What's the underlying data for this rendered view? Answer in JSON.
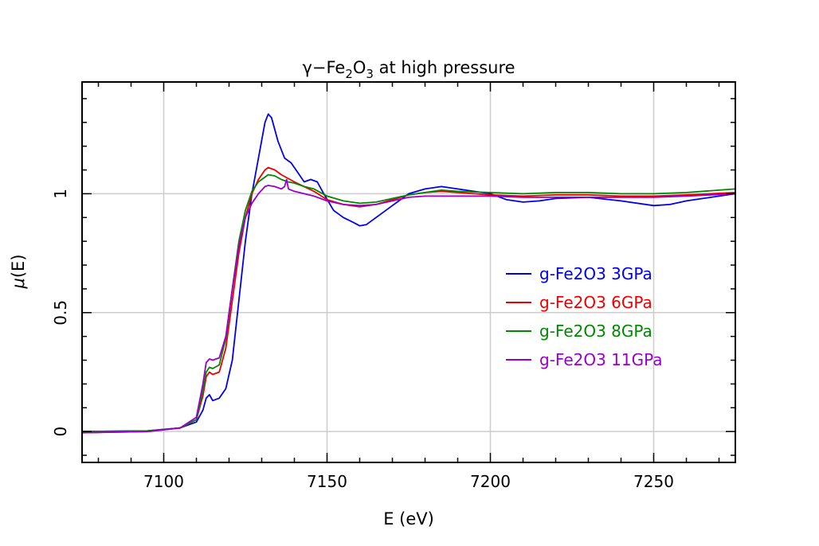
{
  "chart_data": {
    "type": "line",
    "title_prefix": "γ−Fe",
    "title_sub1": "2",
    "title_mid": "O",
    "title_sub2": "3",
    "title_suffix": " at high pressure",
    "xlabel": "E (eV)",
    "ylabel_mu": "μ",
    "ylabel_rest": "(E)",
    "xlim": [
      7075,
      7275
    ],
    "ylim": [
      -0.13,
      1.47
    ],
    "x_ticks": [
      7100,
      7150,
      7200,
      7250
    ],
    "x_tick_labels": [
      "7100",
      "7150",
      "7200",
      "7250"
    ],
    "y_ticks": [
      0,
      0.5,
      1
    ],
    "y_tick_labels": [
      "0",
      "0.5",
      "1"
    ],
    "grid": true,
    "legend_position": "right-center",
    "series": [
      {
        "name": "g-Fe2O3 3GPa",
        "color": "#0000ee",
        "points": [
          [
            7075,
            0
          ],
          [
            7095,
            0.003
          ],
          [
            7105,
            0.015
          ],
          [
            7110,
            0.04
          ],
          [
            7112,
            0.09
          ],
          [
            7113,
            0.14
          ],
          [
            7114,
            0.155
          ],
          [
            7115,
            0.13
          ],
          [
            7117,
            0.14
          ],
          [
            7119,
            0.18
          ],
          [
            7121,
            0.3
          ],
          [
            7123,
            0.55
          ],
          [
            7125,
            0.8
          ],
          [
            7127,
            1.0
          ],
          [
            7129,
            1.15
          ],
          [
            7131,
            1.3
          ],
          [
            7132,
            1.335
          ],
          [
            7133,
            1.32
          ],
          [
            7135,
            1.22
          ],
          [
            7137,
            1.15
          ],
          [
            7139,
            1.13
          ],
          [
            7141,
            1.09
          ],
          [
            7143,
            1.05
          ],
          [
            7145,
            1.06
          ],
          [
            7147,
            1.05
          ],
          [
            7149,
            1.0
          ],
          [
            7152,
            0.93
          ],
          [
            7155,
            0.9
          ],
          [
            7158,
            0.88
          ],
          [
            7160,
            0.865
          ],
          [
            7162,
            0.87
          ],
          [
            7165,
            0.9
          ],
          [
            7170,
            0.95
          ],
          [
            7175,
            1.0
          ],
          [
            7180,
            1.02
          ],
          [
            7185,
            1.03
          ],
          [
            7190,
            1.02
          ],
          [
            7195,
            1.01
          ],
          [
            7200,
            1.0
          ],
          [
            7205,
            0.975
          ],
          [
            7210,
            0.965
          ],
          [
            7215,
            0.97
          ],
          [
            7220,
            0.98
          ],
          [
            7230,
            0.985
          ],
          [
            7240,
            0.97
          ],
          [
            7250,
            0.95
          ],
          [
            7255,
            0.955
          ],
          [
            7260,
            0.97
          ],
          [
            7265,
            0.98
          ],
          [
            7270,
            0.99
          ],
          [
            7275,
            1.0
          ]
        ]
      },
      {
        "name": "g-Fe2O3 6GPa",
        "color": "#ee0000",
        "points": [
          [
            7075,
            -0.005
          ],
          [
            7095,
            0.0
          ],
          [
            7105,
            0.015
          ],
          [
            7110,
            0.05
          ],
          [
            7112,
            0.15
          ],
          [
            7113,
            0.23
          ],
          [
            7114,
            0.25
          ],
          [
            7115,
            0.24
          ],
          [
            7117,
            0.25
          ],
          [
            7119,
            0.35
          ],
          [
            7121,
            0.55
          ],
          [
            7123,
            0.75
          ],
          [
            7125,
            0.9
          ],
          [
            7127,
            1.0
          ],
          [
            7129,
            1.06
          ],
          [
            7131,
            1.1
          ],
          [
            7132,
            1.11
          ],
          [
            7134,
            1.1
          ],
          [
            7136,
            1.08
          ],
          [
            7138,
            1.065
          ],
          [
            7140,
            1.05
          ],
          [
            7143,
            1.03
          ],
          [
            7146,
            1.01
          ],
          [
            7150,
            0.975
          ],
          [
            7155,
            0.955
          ],
          [
            7160,
            0.945
          ],
          [
            7165,
            0.955
          ],
          [
            7170,
            0.975
          ],
          [
            7175,
            0.995
          ],
          [
            7180,
            1.005
          ],
          [
            7185,
            1.01
          ],
          [
            7190,
            1.005
          ],
          [
            7200,
            0.995
          ],
          [
            7210,
            0.99
          ],
          [
            7220,
            0.995
          ],
          [
            7230,
            0.995
          ],
          [
            7240,
            0.99
          ],
          [
            7250,
            0.99
          ],
          [
            7260,
            0.995
          ],
          [
            7275,
            1.005
          ]
        ]
      },
      {
        "name": "g-Fe2O3 8GPa",
        "color": "#008800",
        "points": [
          [
            7075,
            0
          ],
          [
            7095,
            0.003
          ],
          [
            7105,
            0.015
          ],
          [
            7110,
            0.05
          ],
          [
            7112,
            0.17
          ],
          [
            7113,
            0.25
          ],
          [
            7114,
            0.27
          ],
          [
            7115,
            0.265
          ],
          [
            7117,
            0.28
          ],
          [
            7119,
            0.39
          ],
          [
            7121,
            0.6
          ],
          [
            7123,
            0.8
          ],
          [
            7125,
            0.93
          ],
          [
            7127,
            1.01
          ],
          [
            7129,
            1.05
          ],
          [
            7131,
            1.07
          ],
          [
            7132,
            1.08
          ],
          [
            7134,
            1.075
          ],
          [
            7136,
            1.06
          ],
          [
            7138,
            1.05
          ],
          [
            7140,
            1.045
          ],
          [
            7143,
            1.03
          ],
          [
            7146,
            1.02
          ],
          [
            7150,
            0.99
          ],
          [
            7155,
            0.97
          ],
          [
            7160,
            0.96
          ],
          [
            7165,
            0.965
          ],
          [
            7170,
            0.98
          ],
          [
            7175,
            0.995
          ],
          [
            7180,
            1.005
          ],
          [
            7185,
            1.015
          ],
          [
            7190,
            1.01
          ],
          [
            7200,
            1.005
          ],
          [
            7210,
            1.0
          ],
          [
            7220,
            1.005
          ],
          [
            7230,
            1.005
          ],
          [
            7240,
            1.0
          ],
          [
            7250,
            1.0
          ],
          [
            7260,
            1.005
          ],
          [
            7275,
            1.02
          ]
        ]
      },
      {
        "name": "g-Fe2O3 11GPa",
        "color": "#9900cc",
        "points": [
          [
            7075,
            -0.005
          ],
          [
            7095,
            0.0
          ],
          [
            7105,
            0.015
          ],
          [
            7110,
            0.06
          ],
          [
            7112,
            0.2
          ],
          [
            7113,
            0.29
          ],
          [
            7114,
            0.305
          ],
          [
            7115,
            0.3
          ],
          [
            7117,
            0.31
          ],
          [
            7119,
            0.4
          ],
          [
            7121,
            0.6
          ],
          [
            7123,
            0.78
          ],
          [
            7125,
            0.9
          ],
          [
            7127,
            0.96
          ],
          [
            7129,
            1.0
          ],
          [
            7131,
            1.03
          ],
          [
            7132,
            1.035
          ],
          [
            7134,
            1.03
          ],
          [
            7136,
            1.02
          ],
          [
            7137,
            1.03
          ],
          [
            7137.6,
            1.06
          ],
          [
            7138.2,
            1.02
          ],
          [
            7140,
            1.01
          ],
          [
            7143,
            1.0
          ],
          [
            7146,
            0.99
          ],
          [
            7150,
            0.97
          ],
          [
            7155,
            0.955
          ],
          [
            7160,
            0.95
          ],
          [
            7165,
            0.955
          ],
          [
            7170,
            0.97
          ],
          [
            7175,
            0.985
          ],
          [
            7180,
            0.99
          ],
          [
            7190,
            0.99
          ],
          [
            7200,
            0.99
          ],
          [
            7210,
            0.985
          ],
          [
            7220,
            0.985
          ],
          [
            7230,
            0.985
          ],
          [
            7240,
            0.985
          ],
          [
            7250,
            0.985
          ],
          [
            7260,
            0.99
          ],
          [
            7275,
            1.0
          ]
        ]
      }
    ]
  }
}
